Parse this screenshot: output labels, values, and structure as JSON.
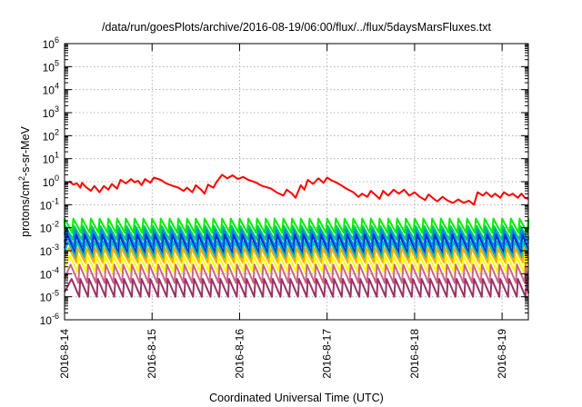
{
  "chart_data": {
    "type": "line",
    "title": "/data/run/goesPlots/archive/2016-08-19/06:00/flux/../flux/5daysMarsFluxes.txt",
    "xlabel": "Coordinated Universal Time (UTC)",
    "ylabel_base": "protons/cm",
    "ylabel_sup": "2",
    "ylabel_rest": "-s-sr-MeV",
    "y_scale": "log",
    "ylim_exp": [
      -6,
      6
    ],
    "y_tick_base": "10",
    "y_tick_exponents": [
      "-6",
      "-5",
      "-4",
      "-3",
      "-2",
      "-1",
      "0",
      "1",
      "2",
      "3",
      "4",
      "5",
      "6"
    ],
    "xlim_days": [
      0,
      5.3
    ],
    "x_ticks": [
      {
        "label": "2016-8-14",
        "day": 0
      },
      {
        "label": "2016-8-15",
        "day": 1
      },
      {
        "label": "2016-8-16",
        "day": 2
      },
      {
        "label": "2016-8-17",
        "day": 3
      },
      {
        "label": "2016-8-18",
        "day": 4
      },
      {
        "label": "2016-8-19",
        "day": 5
      }
    ],
    "grid": true,
    "series": [
      {
        "color": "#ff0000",
        "points": [
          [
            0.0,
            0.8
          ],
          [
            0.06,
            1.0
          ],
          [
            0.1,
            0.75
          ],
          [
            0.14,
            0.85
          ],
          [
            0.18,
            0.55
          ],
          [
            0.2,
            0.9
          ],
          [
            0.24,
            0.6
          ],
          [
            0.3,
            0.4
          ],
          [
            0.34,
            0.65
          ],
          [
            0.4,
            0.35
          ],
          [
            0.45,
            0.65
          ],
          [
            0.5,
            0.45
          ],
          [
            0.54,
            0.8
          ],
          [
            0.6,
            0.5
          ],
          [
            0.64,
            1.2
          ],
          [
            0.7,
            0.85
          ],
          [
            0.76,
            1.3
          ],
          [
            0.8,
            0.95
          ],
          [
            0.84,
            1.1
          ],
          [
            0.88,
            0.7
          ],
          [
            0.92,
            1.3
          ],
          [
            0.98,
            0.9
          ],
          [
            1.02,
            1.5
          ],
          [
            1.1,
            1.2
          ],
          [
            1.16,
            0.85
          ],
          [
            1.24,
            0.65
          ],
          [
            1.3,
            0.55
          ],
          [
            1.36,
            0.4
          ],
          [
            1.4,
            0.55
          ],
          [
            1.46,
            0.35
          ],
          [
            1.5,
            0.7
          ],
          [
            1.56,
            0.45
          ],
          [
            1.6,
            0.3
          ],
          [
            1.64,
            0.75
          ],
          [
            1.7,
            0.55
          ],
          [
            1.74,
            1.0
          ],
          [
            1.8,
            2.0
          ],
          [
            1.86,
            1.4
          ],
          [
            1.92,
            1.9
          ],
          [
            1.98,
            1.3
          ],
          [
            2.04,
            1.6
          ],
          [
            2.1,
            1.2
          ],
          [
            2.18,
            0.95
          ],
          [
            2.26,
            0.65
          ],
          [
            2.36,
            0.5
          ],
          [
            2.42,
            0.35
          ],
          [
            2.5,
            0.25
          ],
          [
            2.54,
            0.45
          ],
          [
            2.6,
            0.3
          ],
          [
            2.64,
            0.2
          ],
          [
            2.7,
            0.7
          ],
          [
            2.74,
            0.45
          ],
          [
            2.78,
            1.2
          ],
          [
            2.84,
            0.8
          ],
          [
            2.9,
            1.4
          ],
          [
            2.96,
            0.9
          ],
          [
            3.0,
            1.5
          ],
          [
            3.06,
            1.1
          ],
          [
            3.1,
            0.95
          ],
          [
            3.16,
            0.7
          ],
          [
            3.22,
            0.5
          ],
          [
            3.3,
            0.35
          ],
          [
            3.36,
            0.22
          ],
          [
            3.4,
            0.3
          ],
          [
            3.46,
            0.22
          ],
          [
            3.5,
            0.4
          ],
          [
            3.56,
            0.25
          ],
          [
            3.6,
            0.18
          ],
          [
            3.64,
            0.4
          ],
          [
            3.7,
            0.25
          ],
          [
            3.76,
            0.45
          ],
          [
            3.82,
            0.3
          ],
          [
            3.88,
            0.45
          ],
          [
            3.94,
            0.25
          ],
          [
            4.0,
            0.35
          ],
          [
            4.06,
            0.22
          ],
          [
            4.12,
            0.16
          ],
          [
            4.16,
            0.28
          ],
          [
            4.22,
            0.18
          ],
          [
            4.26,
            0.14
          ],
          [
            4.32,
            0.22
          ],
          [
            4.38,
            0.15
          ],
          [
            4.44,
            0.12
          ],
          [
            4.5,
            0.17
          ],
          [
            4.56,
            0.12
          ],
          [
            4.62,
            0.15
          ],
          [
            4.68,
            0.1
          ],
          [
            4.72,
            0.35
          ],
          [
            4.78,
            0.25
          ],
          [
            4.82,
            0.35
          ],
          [
            4.88,
            0.22
          ],
          [
            4.92,
            0.3
          ],
          [
            4.98,
            0.2
          ],
          [
            5.02,
            0.35
          ],
          [
            5.08,
            0.25
          ],
          [
            5.12,
            0.3
          ],
          [
            5.18,
            0.2
          ],
          [
            5.22,
            0.3
          ],
          [
            5.26,
            0.2
          ],
          [
            5.3,
            0.18
          ]
        ]
      },
      {
        "color": "#00ee00",
        "sawtooth": {
          "min": 0.006,
          "max": 0.025,
          "period": 0.1,
          "phase": 0.0
        }
      },
      {
        "color": "#00cc66",
        "sawtooth": {
          "min": 0.003,
          "max": 0.012,
          "period": 0.1,
          "phase": 0.01
        }
      },
      {
        "color": "#0088ff",
        "sawtooth": {
          "min": 0.0015,
          "max": 0.008,
          "period": 0.1,
          "phase": 0.02
        }
      },
      {
        "color": "#0033cc",
        "sawtooth": {
          "min": 0.0008,
          "max": 0.005,
          "period": 0.1,
          "phase": 0.03
        }
      },
      {
        "color": "#00bbbb",
        "sawtooth": {
          "min": 0.0005,
          "max": 0.0025,
          "period": 0.1,
          "phase": 0.04
        }
      },
      {
        "color": "#ffaa00",
        "sawtooth": {
          "min": 0.0003,
          "max": 0.0013,
          "period": 0.1,
          "phase": 0.05
        }
      },
      {
        "color": "#ffff00",
        "sawtooth": {
          "min": 0.00012,
          "max": 0.0006,
          "period": 0.1,
          "phase": 0.06
        }
      },
      {
        "color": "#cc6688",
        "sawtooth": {
          "min": 4e-05,
          "max": 0.00025,
          "period": 0.1,
          "phase": 0.07
        }
      },
      {
        "color": "#993366",
        "sawtooth": {
          "min": 1e-05,
          "max": 6e-05,
          "period": 0.1,
          "phase": 0.08
        }
      }
    ]
  }
}
